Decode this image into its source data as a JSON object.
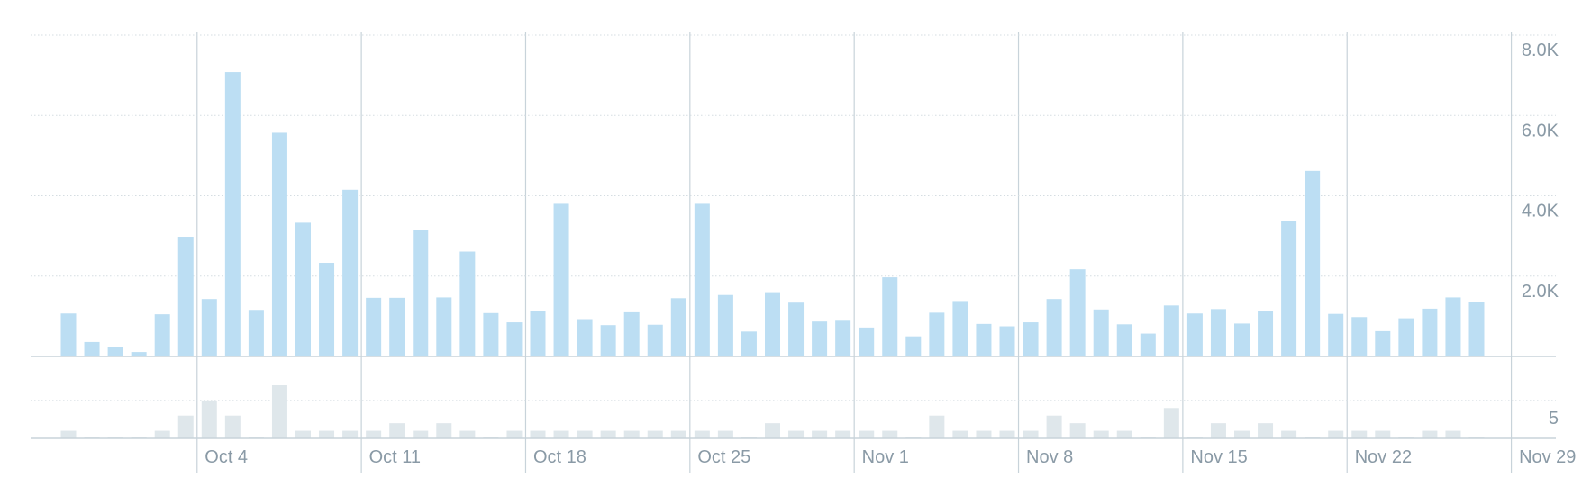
{
  "chart_data": [
    {
      "type": "bar",
      "x_start": "Sep 28",
      "x_end": "Nov 30",
      "ylim": [
        0,
        8000
      ],
      "y_ticks": [
        2000,
        4000,
        6000,
        8000
      ],
      "y_tick_labels": [
        "2.0K",
        "4.0K",
        "6.0K",
        "8.0K"
      ],
      "values": [
        1070,
        360,
        230,
        110,
        1050,
        2980,
        1430,
        7080,
        1160,
        5570,
        3330,
        2330,
        4150,
        1460,
        1460,
        3150,
        1470,
        2610,
        1080,
        850,
        1140,
        3800,
        930,
        780,
        1100,
        790,
        1450,
        3800,
        1530,
        620,
        1600,
        1340,
        870,
        890,
        720,
        1970,
        500,
        1090,
        1380,
        810,
        750,
        850,
        1430,
        2170,
        1170,
        800,
        570,
        1270,
        1070,
        1180,
        820,
        1120,
        3370,
        4620,
        1060,
        980,
        630,
        950,
        1190,
        1470,
        1350
      ],
      "color": "#bcdef3",
      "grid": true
    },
    {
      "type": "bar",
      "ylim": [
        0,
        7
      ],
      "y_ticks": [
        5
      ],
      "y_tick_labels": [
        "5"
      ],
      "values": [
        1,
        0,
        0,
        0,
        1,
        3,
        5,
        3,
        0,
        7,
        1,
        1,
        1,
        1,
        2,
        1,
        2,
        1,
        0,
        1,
        1,
        1,
        1,
        1,
        1,
        1,
        1,
        1,
        1,
        0,
        2,
        1,
        1,
        1,
        1,
        1,
        0,
        3,
        1,
        1,
        1,
        1,
        3,
        2,
        1,
        1,
        0,
        4,
        0,
        2,
        1,
        2,
        1,
        0,
        1,
        1,
        1,
        0,
        1,
        1,
        0
      ],
      "color": "#dfe7eb",
      "grid": true
    }
  ],
  "x_axis": {
    "tick_labels": [
      "Oct 4",
      "Oct 11",
      "Oct 18",
      "Oct 25",
      "Nov 1",
      "Nov 8",
      "Nov 15",
      "Nov 22",
      "Nov 29"
    ],
    "tick_day_index": [
      6,
      13,
      20,
      27,
      34,
      41,
      48,
      55,
      62
    ]
  },
  "colors": {
    "grid": "#d5dde2",
    "axis": "#c8d3da",
    "text": "#8a9aa6"
  }
}
